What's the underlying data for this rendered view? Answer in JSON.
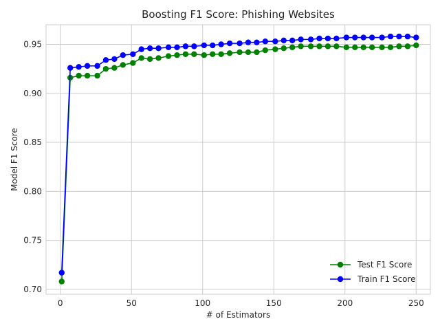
{
  "chart_data": {
    "type": "line",
    "title": "Boosting F1 Score: Phishing Websites",
    "xlabel": "# of Estimators",
    "ylabel": "Model F1 Score",
    "xlim": [
      -10,
      260
    ],
    "ylim": [
      0.695,
      0.97
    ],
    "xticks": [
      0,
      50,
      100,
      150,
      200,
      250
    ],
    "yticks": [
      0.7,
      0.75,
      0.8,
      0.85,
      0.9,
      0.95
    ],
    "xtick_labels": [
      "0",
      "50",
      "100",
      "150",
      "200",
      "250"
    ],
    "ytick_labels": [
      "0.70",
      "0.75",
      "0.80",
      "0.85",
      "0.90",
      "0.95"
    ],
    "grid": true,
    "legend_position": "bottom-right",
    "x": [
      1,
      7,
      13,
      19,
      26,
      32,
      38,
      44,
      51,
      57,
      63,
      69,
      76,
      82,
      88,
      94,
      101,
      107,
      113,
      119,
      126,
      132,
      138,
      144,
      151,
      157,
      163,
      169,
      176,
      182,
      188,
      194,
      201,
      207,
      213,
      219,
      226,
      232,
      238,
      244,
      250
    ],
    "series": [
      {
        "name": "Test F1 Score",
        "color": "#008000",
        "values": [
          0.708,
          0.916,
          0.918,
          0.918,
          0.918,
          0.925,
          0.926,
          0.929,
          0.931,
          0.936,
          0.935,
          0.936,
          0.938,
          0.939,
          0.94,
          0.94,
          0.939,
          0.94,
          0.94,
          0.941,
          0.942,
          0.942,
          0.942,
          0.944,
          0.945,
          0.946,
          0.947,
          0.948,
          0.948,
          0.948,
          0.948,
          0.948,
          0.947,
          0.947,
          0.947,
          0.947,
          0.947,
          0.947,
          0.948,
          0.948,
          0.949
        ]
      },
      {
        "name": "Train F1 Score",
        "color": "#0000ff",
        "values": [
          0.717,
          0.926,
          0.927,
          0.928,
          0.928,
          0.934,
          0.935,
          0.939,
          0.94,
          0.945,
          0.946,
          0.946,
          0.947,
          0.947,
          0.948,
          0.948,
          0.949,
          0.949,
          0.95,
          0.951,
          0.951,
          0.952,
          0.952,
          0.953,
          0.953,
          0.954,
          0.954,
          0.955,
          0.955,
          0.956,
          0.956,
          0.956,
          0.957,
          0.957,
          0.957,
          0.957,
          0.957,
          0.958,
          0.958,
          0.958,
          0.957
        ]
      }
    ]
  }
}
